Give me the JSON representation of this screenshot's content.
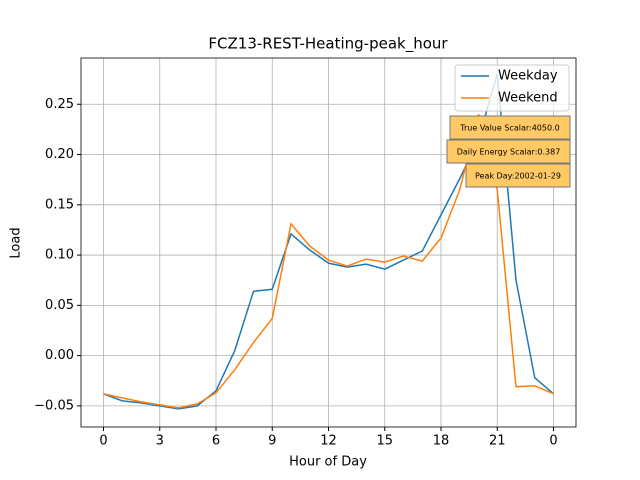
{
  "chart_data": {
    "type": "line",
    "title": "FCZ13-REST-Heating-peak_hour",
    "x_label": "Hour of Day",
    "y_label": "Load",
    "x": [
      0,
      1,
      2,
      3,
      4,
      5,
      6,
      7,
      8,
      9,
      10,
      11,
      12,
      13,
      14,
      15,
      16,
      17,
      18,
      19,
      20,
      21,
      22,
      23,
      24
    ],
    "series": [
      {
        "name": "Weekday",
        "color": "#1f77b4",
        "values": [
          -0.038,
          -0.045,
          -0.047,
          -0.05,
          -0.053,
          -0.05,
          -0.035,
          0.005,
          0.064,
          0.066,
          0.121,
          0.105,
          0.092,
          0.088,
          0.091,
          0.086,
          0.095,
          0.104,
          0.14,
          0.176,
          0.215,
          0.28,
          0.075,
          -0.022,
          -0.038
        ]
      },
      {
        "name": "Weekend",
        "color": "#ff7f0e",
        "values": [
          -0.038,
          -0.042,
          -0.046,
          -0.049,
          -0.052,
          -0.048,
          -0.037,
          -0.014,
          0.013,
          0.037,
          0.131,
          0.109,
          0.095,
          0.089,
          0.096,
          0.093,
          0.099,
          0.094,
          0.117,
          0.165,
          0.24,
          0.165,
          -0.031,
          -0.03,
          -0.038
        ]
      }
    ],
    "xlim": [
      -1.2,
      25.2
    ],
    "ylim": [
      -0.071,
      0.296
    ],
    "xticks": [
      0,
      3,
      6,
      9,
      12,
      15,
      18,
      21,
      {
        "value": 24,
        "label": "0"
      }
    ],
    "yticks": [
      {
        "value": -0.05,
        "label": "−0.05"
      },
      {
        "value": 0,
        "label": "0.00"
      },
      0.05,
      {
        "value": 0.1,
        "label": "0.10"
      },
      0.15,
      {
        "value": 0.2,
        "label": "0.20"
      },
      0.25
    ],
    "grid": true,
    "legend_position": "upper right",
    "annotations": [
      "True Value Scalar:4050.0",
      "Daily Energy Scalar:0.387",
      "Peak Day:2002-01-29"
    ]
  }
}
